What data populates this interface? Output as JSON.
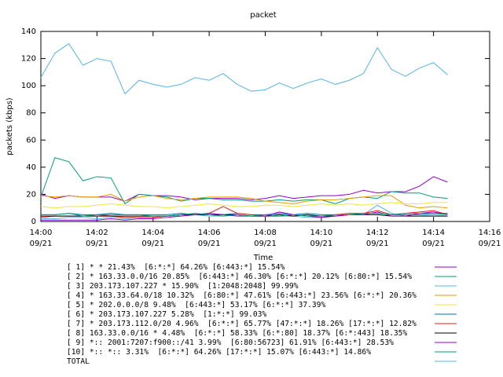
{
  "chart_data": {
    "type": "line",
    "title": "packet",
    "xlabel": "Time",
    "ylabel": "packets (kbps)",
    "x": [
      0,
      0.5,
      1,
      1.5,
      2,
      2.5,
      3,
      3.5,
      4,
      4.5,
      5,
      5.5,
      6,
      6.5,
      7,
      7.5,
      8,
      8.5,
      9,
      9.5,
      10,
      10.5,
      11,
      11.5,
      12,
      12.5,
      13,
      13.5,
      14,
      14.5
    ],
    "xlim": [
      0,
      16
    ],
    "xticks": [
      {
        "value": 0,
        "label": "14:00",
        "date": "09/21"
      },
      {
        "value": 2,
        "label": "14:02",
        "date": "09/21"
      },
      {
        "value": 4,
        "label": "14:04",
        "date": "09/21"
      },
      {
        "value": 6,
        "label": "14:06",
        "date": "09/21"
      },
      {
        "value": 8,
        "label": "14:08",
        "date": "09/21"
      },
      {
        "value": 10,
        "label": "14:10",
        "date": "09/21"
      },
      {
        "value": 12,
        "label": "14:12",
        "date": "09/21"
      },
      {
        "value": 14,
        "label": "14:14",
        "date": "09/21"
      },
      {
        "value": 16,
        "label": "14:16",
        "date": "09/21"
      }
    ],
    "ylim": [
      0,
      140
    ],
    "yticks": [
      0,
      20,
      40,
      60,
      80,
      100,
      120,
      140
    ],
    "series": [
      {
        "name": "[ 1] * * 21.43%  [6:*:*] 64.26% [6:443:*] 15.54%",
        "color": "#9400d3",
        "values": [
          20,
          17,
          19,
          18,
          18,
          18,
          15,
          20,
          19,
          19,
          18,
          16,
          17,
          17,
          17,
          16,
          17,
          19,
          17,
          18,
          19,
          19,
          20,
          23,
          21,
          22,
          22,
          26,
          33,
          29
        ]
      },
      {
        "name": "[ 2] * 163.33.0.0/16 20.85%  [6:443:*] 46.30% [6:*:*] 20.12% [6:80:*] 15.54%",
        "color": "#009e73",
        "values": [
          18,
          47,
          44,
          30,
          33,
          32,
          13,
          20,
          19,
          18,
          15,
          17,
          17,
          16,
          16,
          15,
          15,
          16,
          15,
          16,
          16,
          13,
          17,
          18,
          17,
          22,
          21,
          21,
          18,
          17
        ]
      },
      {
        "name": "[ 3] 203.173.107.227 * 15.90%  [1:2048:2048] 99.99%",
        "color": "#56b4e9",
        "values": [
          2,
          2,
          3,
          3,
          2,
          3,
          2,
          3,
          3,
          4,
          4,
          5,
          4,
          4,
          5,
          4,
          4,
          4,
          4,
          3,
          3,
          4,
          5,
          5,
          12,
          6,
          4,
          4,
          5,
          4
        ]
      },
      {
        "name": "[ 4] * 163.33.64.0/18 10.32%  [6:80:*] 47.61% [6:443:*] 23.56% [6:*:*] 20.36%",
        "color": "#e69f00",
        "values": [
          19,
          18,
          19,
          18,
          18,
          20,
          15,
          18,
          19,
          17,
          16,
          17,
          18,
          18,
          18,
          17,
          15,
          14,
          13,
          15,
          16,
          16,
          17,
          18,
          19,
          19,
          12,
          10,
          11,
          10
        ]
      },
      {
        "name": "[ 5] * 202.0.0.0/8 9.48%  [6:443:*] 53.17% [6:*:*] 37.39%",
        "color": "#f0e442",
        "values": [
          11,
          10,
          11,
          11,
          12,
          13,
          12,
          11,
          11,
          10,
          11,
          12,
          13,
          12,
          11,
          11,
          12,
          12,
          11,
          12,
          13,
          12,
          13,
          12,
          13,
          14,
          13,
          13,
          14,
          14
        ]
      },
      {
        "name": "[ 6] * 203.173.107.227 5.28%  [1:*:*] 99.03%",
        "color": "#0072b2",
        "values": [
          5,
          5,
          6,
          5,
          5,
          6,
          5,
          5,
          5,
          5,
          6,
          5,
          6,
          5,
          6,
          5,
          5,
          6,
          5,
          6,
          5,
          5,
          5,
          6,
          6,
          5,
          5,
          5,
          6,
          6
        ]
      },
      {
        "name": "[ 7] * 203.173.112.0/20 4.96%  [6:*:*] 65.77% [47:*:*] 18.26% [17:*:*] 12.82%",
        "color": "#e51e10",
        "values": [
          3,
          4,
          4,
          4,
          5,
          4,
          3,
          3,
          3,
          4,
          5,
          5,
          6,
          11,
          6,
          5,
          4,
          4,
          5,
          4,
          4,
          5,
          6,
          6,
          8,
          5,
          6,
          7,
          8,
          5
        ]
      },
      {
        "name": "[ 8] 163.33.0.0/16 * 4.48%  [6:*:*] 58.33% [6:*:80] 18.37% [6:*:443] 18.35%",
        "color": "#000000",
        "values": [
          4,
          4,
          4,
          4,
          4,
          4,
          4,
          4,
          4,
          4,
          5,
          5,
          5,
          5,
          5,
          4,
          4,
          5,
          4,
          5,
          4,
          4,
          5,
          5,
          5,
          4,
          4,
          4,
          4,
          4
        ]
      },
      {
        "name": "[ 9] *:: 2001:7207:f900::/41 3.99%  [6:80:56723] 61.91% [6:443:*] 28.53%",
        "color": "#9400d3",
        "values": [
          1,
          1,
          1,
          1,
          1,
          2,
          1,
          2,
          2,
          3,
          4,
          5,
          6,
          5,
          4,
          4,
          4,
          7,
          5,
          4,
          3,
          4,
          5,
          5,
          7,
          4,
          4,
          6,
          7,
          5
        ]
      },
      {
        "name": "[10] *:: *:: 3.31%  [6:*:*] 64.26% [17:*:*] 15.07% [6:443:*] 14.86%",
        "color": "#009e73",
        "values": [
          5,
          5,
          6,
          4,
          5,
          5,
          5,
          5,
          4,
          4,
          5,
          6,
          5,
          4,
          5,
          4,
          5,
          4,
          5,
          4,
          4,
          5,
          5,
          6,
          6,
          5,
          6,
          6,
          6,
          5
        ]
      },
      {
        "name": "TOTAL",
        "color": "#56b4e9",
        "values": [
          106,
          124,
          131,
          115,
          120,
          118,
          94,
          104,
          101,
          99,
          101,
          106,
          104,
          109,
          101,
          96,
          97,
          102,
          98,
          102,
          105,
          101,
          104,
          109,
          128,
          112,
          107,
          113,
          117,
          108
        ]
      }
    ]
  }
}
